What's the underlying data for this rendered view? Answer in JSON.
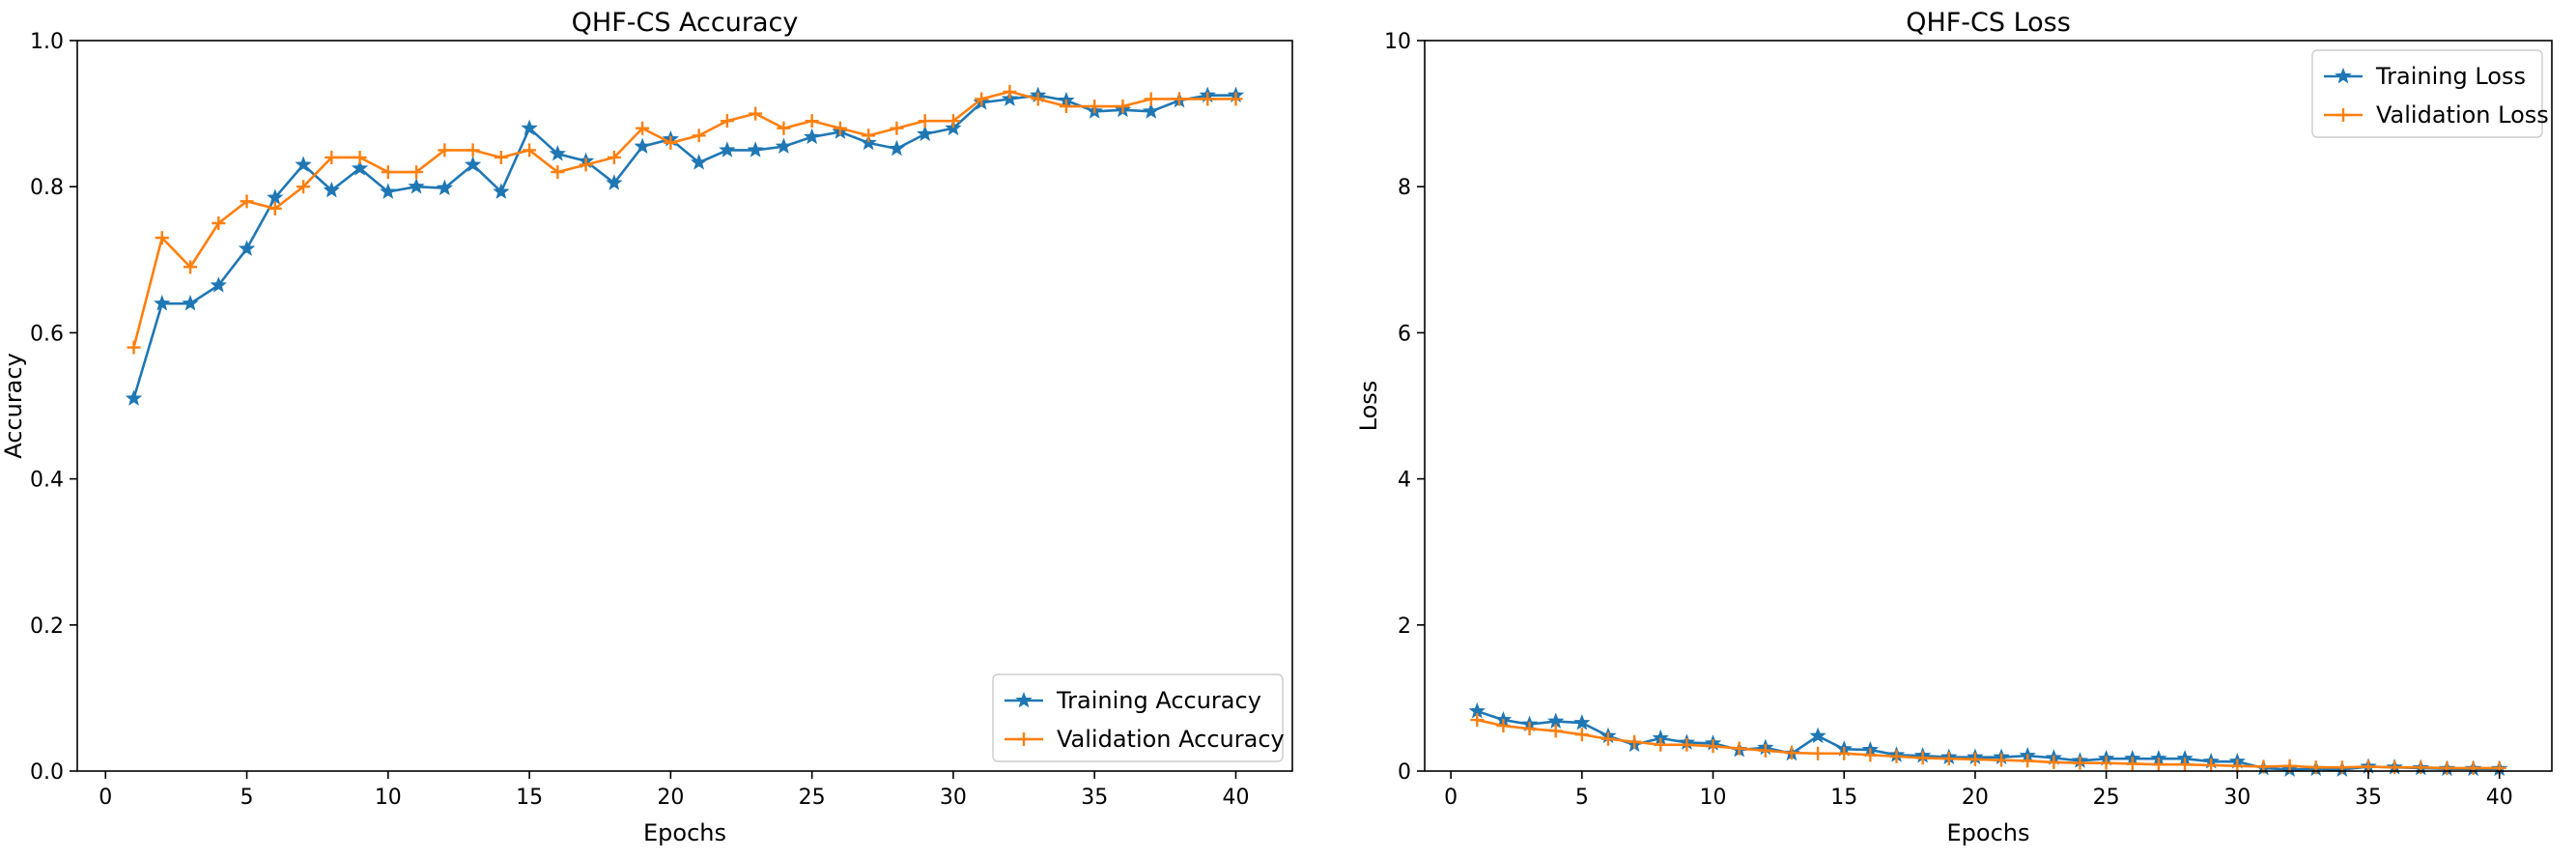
{
  "chart_data": [
    {
      "type": "line",
      "title": "QHF-CS Accuracy",
      "xlabel": "Epochs",
      "ylabel": "Accuracy",
      "xlim": [
        -1,
        42
      ],
      "ylim": [
        0,
        1.0
      ],
      "xticks": [
        0,
        5,
        10,
        15,
        20,
        25,
        30,
        35,
        40
      ],
      "yticks": [
        0.0,
        0.2,
        0.4,
        0.6,
        0.8,
        1.0
      ],
      "ytick_labels": [
        "0.0",
        "0.2",
        "0.4",
        "0.6",
        "0.8",
        "1.0"
      ],
      "grid": false,
      "legend_position": "lower-right",
      "x": [
        1,
        2,
        3,
        4,
        5,
        6,
        7,
        8,
        9,
        10,
        11,
        12,
        13,
        14,
        15,
        16,
        17,
        18,
        19,
        20,
        21,
        22,
        23,
        24,
        25,
        26,
        27,
        28,
        29,
        30,
        31,
        32,
        33,
        34,
        35,
        36,
        37,
        38,
        39,
        40
      ],
      "series": [
        {
          "name": "Training Accuracy",
          "color": "#1f77b4",
          "marker": "star",
          "values": [
            0.51,
            0.64,
            0.64,
            0.665,
            0.715,
            0.785,
            0.83,
            0.795,
            0.825,
            0.793,
            0.8,
            0.798,
            0.83,
            0.793,
            0.88,
            0.845,
            0.835,
            0.805,
            0.855,
            0.865,
            0.833,
            0.85,
            0.85,
            0.855,
            0.868,
            0.875,
            0.86,
            0.852,
            0.872,
            0.88,
            0.915,
            0.92,
            0.925,
            0.918,
            0.903,
            0.905,
            0.903,
            0.918,
            0.925,
            0.925
          ]
        },
        {
          "name": "Validation Accuracy",
          "color": "#ff7f0e",
          "marker": "plus",
          "values": [
            0.58,
            0.73,
            0.69,
            0.75,
            0.78,
            0.77,
            0.8,
            0.84,
            0.84,
            0.82,
            0.82,
            0.85,
            0.85,
            0.84,
            0.85,
            0.82,
            0.83,
            0.84,
            0.88,
            0.86,
            0.87,
            0.89,
            0.9,
            0.88,
            0.89,
            0.88,
            0.87,
            0.88,
            0.89,
            0.89,
            0.92,
            0.93,
            0.92,
            0.91,
            0.91,
            0.91,
            0.92,
            0.92,
            0.92,
            0.92
          ]
        }
      ]
    },
    {
      "type": "line",
      "title": "QHF-CS Loss",
      "xlabel": "Epochs",
      "ylabel": "Loss",
      "xlim": [
        -1,
        42
      ],
      "ylim": [
        0,
        10
      ],
      "xticks": [
        0,
        5,
        10,
        15,
        20,
        25,
        30,
        35,
        40
      ],
      "yticks": [
        0,
        2,
        4,
        6,
        8,
        10
      ],
      "ytick_labels": [
        "0",
        "2",
        "4",
        "6",
        "8",
        "10"
      ],
      "grid": false,
      "legend_position": "upper-right",
      "x": [
        1,
        2,
        3,
        4,
        5,
        6,
        7,
        8,
        9,
        10,
        11,
        12,
        13,
        14,
        15,
        16,
        17,
        18,
        19,
        20,
        21,
        22,
        23,
        24,
        25,
        26,
        27,
        28,
        29,
        30,
        31,
        32,
        33,
        34,
        35,
        36,
        37,
        38,
        39,
        40
      ],
      "series": [
        {
          "name": "Training Loss",
          "color": "#1f77b4",
          "marker": "star",
          "values": [
            0.82,
            0.7,
            0.64,
            0.68,
            0.66,
            0.48,
            0.36,
            0.45,
            0.39,
            0.38,
            0.29,
            0.32,
            0.24,
            0.48,
            0.3,
            0.29,
            0.22,
            0.21,
            0.19,
            0.19,
            0.19,
            0.21,
            0.18,
            0.14,
            0.17,
            0.17,
            0.17,
            0.17,
            0.13,
            0.13,
            0.04,
            0.02,
            0.03,
            0.02,
            0.06,
            0.05,
            0.04,
            0.03,
            0.03,
            0.03
          ]
        },
        {
          "name": "Validation Loss",
          "color": "#ff7f0e",
          "marker": "plus",
          "values": [
            0.7,
            0.62,
            0.58,
            0.55,
            0.5,
            0.44,
            0.4,
            0.36,
            0.36,
            0.34,
            0.31,
            0.28,
            0.25,
            0.24,
            0.24,
            0.22,
            0.2,
            0.18,
            0.17,
            0.16,
            0.15,
            0.14,
            0.12,
            0.11,
            0.11,
            0.1,
            0.09,
            0.09,
            0.08,
            0.07,
            0.06,
            0.07,
            0.05,
            0.05,
            0.06,
            0.05,
            0.05,
            0.04,
            0.04,
            0.04
          ]
        }
      ]
    }
  ]
}
